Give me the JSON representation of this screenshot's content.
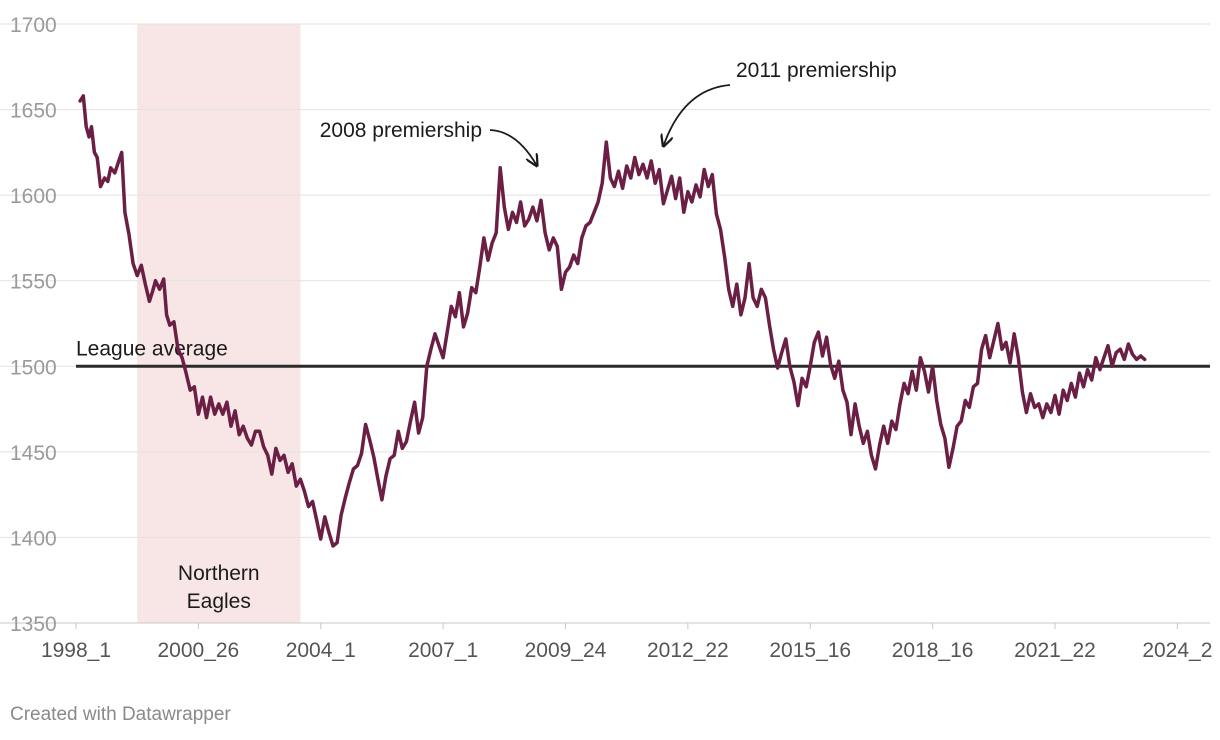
{
  "chart_data": {
    "type": "line",
    "title": "",
    "xlabel": "",
    "ylabel": "",
    "ylim": [
      1350,
      1700
    ],
    "y_ticks": [
      1350,
      1400,
      1450,
      1500,
      1550,
      1600,
      1650,
      1700
    ],
    "x_tick_labels": [
      "1998_1",
      "2000_26",
      "2004_1",
      "2007_1",
      "2009_24",
      "2012_22",
      "2015_16",
      "2018_16",
      "2021_22",
      "2024_2"
    ],
    "x_tick_positions": [
      1998.0,
      2001.0,
      2004.0,
      2007.0,
      2010.0,
      2013.0,
      2016.0,
      2019.0,
      2022.0,
      2025.0
    ],
    "xlim": [
      1998.0,
      2025.8
    ],
    "grid": true,
    "reference_line": {
      "value": 1500,
      "label": "League average"
    },
    "shaded_region": {
      "x_start": 1999.5,
      "x_end": 2003.5,
      "label_line1": "Northern",
      "label_line2": "Eagles",
      "color": "#f8e6e6"
    },
    "annotations": [
      {
        "text": "2008 premiership",
        "x": 2009.3,
        "y": 1616
      },
      {
        "text": "2011 premiership",
        "x": 2012.4,
        "y": 1631
      }
    ],
    "series": [
      {
        "color": "#6b1f45",
        "points": [
          [
            1998.1,
            1655
          ],
          [
            1998.18,
            1658
          ],
          [
            1998.25,
            1640
          ],
          [
            1998.32,
            1634
          ],
          [
            1998.38,
            1640
          ],
          [
            1998.45,
            1625
          ],
          [
            1998.52,
            1622
          ],
          [
            1998.6,
            1605
          ],
          [
            1998.7,
            1610
          ],
          [
            1998.78,
            1608
          ],
          [
            1998.85,
            1616
          ],
          [
            1998.95,
            1613
          ],
          [
            1999.05,
            1620
          ],
          [
            1999.12,
            1625
          ],
          [
            1999.2,
            1590
          ],
          [
            1999.3,
            1577
          ],
          [
            1999.4,
            1560
          ],
          [
            1999.5,
            1553
          ],
          [
            1999.6,
            1559
          ],
          [
            1999.7,
            1548
          ],
          [
            1999.8,
            1538
          ],
          [
            1999.88,
            1544
          ],
          [
            1999.95,
            1550
          ],
          [
            2000.05,
            1545
          ],
          [
            2000.15,
            1551
          ],
          [
            2000.22,
            1530
          ],
          [
            2000.3,
            1524
          ],
          [
            2000.4,
            1526
          ],
          [
            2000.5,
            1510
          ],
          [
            2000.6,
            1505
          ],
          [
            2000.7,
            1496
          ],
          [
            2000.8,
            1486
          ],
          [
            2000.9,
            1488
          ],
          [
            2001.0,
            1472
          ],
          [
            2001.1,
            1482
          ],
          [
            2001.2,
            1470
          ],
          [
            2001.3,
            1482
          ],
          [
            2001.4,
            1472
          ],
          [
            2001.5,
            1478
          ],
          [
            2001.6,
            1472
          ],
          [
            2001.7,
            1479
          ],
          [
            2001.8,
            1465
          ],
          [
            2001.9,
            1474
          ],
          [
            2002.0,
            1460
          ],
          [
            2002.1,
            1465
          ],
          [
            2002.2,
            1458
          ],
          [
            2002.3,
            1454
          ],
          [
            2002.4,
            1462
          ],
          [
            2002.5,
            1462
          ],
          [
            2002.6,
            1453
          ],
          [
            2002.7,
            1448
          ],
          [
            2002.8,
            1437
          ],
          [
            2002.9,
            1452
          ],
          [
            2003.0,
            1445
          ],
          [
            2003.1,
            1448
          ],
          [
            2003.2,
            1438
          ],
          [
            2003.3,
            1443
          ],
          [
            2003.4,
            1430
          ],
          [
            2003.5,
            1434
          ],
          [
            2003.6,
            1427
          ],
          [
            2003.7,
            1418
          ],
          [
            2003.8,
            1421
          ],
          [
            2003.9,
            1410
          ],
          [
            2004.0,
            1399
          ],
          [
            2004.1,
            1412
          ],
          [
            2004.2,
            1403
          ],
          [
            2004.3,
            1395
          ],
          [
            2004.4,
            1397
          ],
          [
            2004.5,
            1413
          ],
          [
            2004.6,
            1423
          ],
          [
            2004.7,
            1432
          ],
          [
            2004.8,
            1440
          ],
          [
            2004.9,
            1442
          ],
          [
            2005.0,
            1449
          ],
          [
            2005.1,
            1466
          ],
          [
            2005.2,
            1457
          ],
          [
            2005.3,
            1447
          ],
          [
            2005.4,
            1434
          ],
          [
            2005.5,
            1422
          ],
          [
            2005.6,
            1436
          ],
          [
            2005.7,
            1446
          ],
          [
            2005.8,
            1448
          ],
          [
            2005.9,
            1462
          ],
          [
            2006.0,
            1452
          ],
          [
            2006.1,
            1456
          ],
          [
            2006.2,
            1468
          ],
          [
            2006.3,
            1479
          ],
          [
            2006.4,
            1461
          ],
          [
            2006.5,
            1470
          ],
          [
            2006.6,
            1500
          ],
          [
            2006.7,
            1510
          ],
          [
            2006.8,
            1519
          ],
          [
            2006.9,
            1512
          ],
          [
            2007.0,
            1505
          ],
          [
            2007.1,
            1520
          ],
          [
            2007.2,
            1535
          ],
          [
            2007.3,
            1529
          ],
          [
            2007.4,
            1543
          ],
          [
            2007.5,
            1523
          ],
          [
            2007.6,
            1531
          ],
          [
            2007.7,
            1546
          ],
          [
            2007.8,
            1543
          ],
          [
            2007.9,
            1558
          ],
          [
            2008.0,
            1575
          ],
          [
            2008.1,
            1562
          ],
          [
            2008.2,
            1572
          ],
          [
            2008.3,
            1578
          ],
          [
            2008.4,
            1616
          ],
          [
            2008.5,
            1593
          ],
          [
            2008.6,
            1580
          ],
          [
            2008.7,
            1590
          ],
          [
            2008.8,
            1584
          ],
          [
            2008.9,
            1596
          ],
          [
            2009.0,
            1582
          ],
          [
            2009.1,
            1586
          ],
          [
            2009.2,
            1593
          ],
          [
            2009.3,
            1585
          ],
          [
            2009.4,
            1597
          ],
          [
            2009.5,
            1578
          ],
          [
            2009.6,
            1568
          ],
          [
            2009.7,
            1575
          ],
          [
            2009.8,
            1570
          ],
          [
            2009.9,
            1545
          ],
          [
            2010.0,
            1555
          ],
          [
            2010.1,
            1558
          ],
          [
            2010.2,
            1565
          ],
          [
            2010.3,
            1560
          ],
          [
            2010.4,
            1575
          ],
          [
            2010.5,
            1582
          ],
          [
            2010.6,
            1584
          ],
          [
            2010.7,
            1590
          ],
          [
            2010.8,
            1596
          ],
          [
            2010.9,
            1607
          ],
          [
            2011.0,
            1631
          ],
          [
            2011.1,
            1610
          ],
          [
            2011.2,
            1605
          ],
          [
            2011.3,
            1614
          ],
          [
            2011.4,
            1604
          ],
          [
            2011.5,
            1617
          ],
          [
            2011.6,
            1610
          ],
          [
            2011.7,
            1622
          ],
          [
            2011.8,
            1612
          ],
          [
            2011.9,
            1618
          ],
          [
            2012.0,
            1610
          ],
          [
            2012.1,
            1620
          ],
          [
            2012.2,
            1607
          ],
          [
            2012.3,
            1615
          ],
          [
            2012.4,
            1595
          ],
          [
            2012.5,
            1603
          ],
          [
            2012.6,
            1611
          ],
          [
            2012.7,
            1598
          ],
          [
            2012.8,
            1610
          ],
          [
            2012.9,
            1590
          ],
          [
            2013.0,
            1602
          ],
          [
            2013.1,
            1596
          ],
          [
            2013.2,
            1606
          ],
          [
            2013.3,
            1599
          ],
          [
            2013.4,
            1615
          ],
          [
            2013.5,
            1605
          ],
          [
            2013.6,
            1612
          ],
          [
            2013.7,
            1589
          ],
          [
            2013.8,
            1580
          ],
          [
            2013.9,
            1564
          ],
          [
            2014.0,
            1545
          ],
          [
            2014.1,
            1535
          ],
          [
            2014.2,
            1548
          ],
          [
            2014.3,
            1530
          ],
          [
            2014.4,
            1540
          ],
          [
            2014.5,
            1560
          ],
          [
            2014.6,
            1540
          ],
          [
            2014.7,
            1535
          ],
          [
            2014.8,
            1545
          ],
          [
            2014.9,
            1540
          ],
          [
            2015.0,
            1524
          ],
          [
            2015.1,
            1510
          ],
          [
            2015.2,
            1499
          ],
          [
            2015.3,
            1508
          ],
          [
            2015.4,
            1516
          ],
          [
            2015.5,
            1500
          ],
          [
            2015.6,
            1491
          ],
          [
            2015.7,
            1477
          ],
          [
            2015.8,
            1493
          ],
          [
            2015.9,
            1488
          ],
          [
            2016.0,
            1500
          ],
          [
            2016.1,
            1514
          ],
          [
            2016.2,
            1520
          ],
          [
            2016.3,
            1506
          ],
          [
            2016.4,
            1517
          ],
          [
            2016.5,
            1501
          ],
          [
            2016.6,
            1493
          ],
          [
            2016.7,
            1503
          ],
          [
            2016.8,
            1486
          ],
          [
            2016.9,
            1479
          ],
          [
            2017.0,
            1460
          ],
          [
            2017.1,
            1478
          ],
          [
            2017.2,
            1465
          ],
          [
            2017.3,
            1455
          ],
          [
            2017.4,
            1462
          ],
          [
            2017.5,
            1448
          ],
          [
            2017.6,
            1440
          ],
          [
            2017.7,
            1454
          ],
          [
            2017.8,
            1465
          ],
          [
            2017.9,
            1455
          ],
          [
            2018.0,
            1468
          ],
          [
            2018.1,
            1463
          ],
          [
            2018.2,
            1478
          ],
          [
            2018.3,
            1490
          ],
          [
            2018.4,
            1484
          ],
          [
            2018.5,
            1497
          ],
          [
            2018.6,
            1486
          ],
          [
            2018.7,
            1505
          ],
          [
            2018.8,
            1497
          ],
          [
            2018.9,
            1485
          ],
          [
            2019.0,
            1500
          ],
          [
            2019.1,
            1480
          ],
          [
            2019.2,
            1466
          ],
          [
            2019.3,
            1458
          ],
          [
            2019.4,
            1441
          ],
          [
            2019.5,
            1452
          ],
          [
            2019.6,
            1465
          ],
          [
            2019.7,
            1468
          ],
          [
            2019.8,
            1480
          ],
          [
            2019.9,
            1476
          ],
          [
            2020.0,
            1488
          ],
          [
            2020.1,
            1490
          ],
          [
            2020.2,
            1510
          ],
          [
            2020.3,
            1518
          ],
          [
            2020.4,
            1505
          ],
          [
            2020.5,
            1515
          ],
          [
            2020.6,
            1525
          ],
          [
            2020.7,
            1510
          ],
          [
            2020.8,
            1514
          ],
          [
            2020.9,
            1502
          ],
          [
            2021.0,
            1519
          ],
          [
            2021.1,
            1505
          ],
          [
            2021.2,
            1485
          ],
          [
            2021.3,
            1473
          ],
          [
            2021.4,
            1484
          ],
          [
            2021.5,
            1476
          ],
          [
            2021.6,
            1478
          ],
          [
            2021.7,
            1470
          ],
          [
            2021.8,
            1478
          ],
          [
            2021.9,
            1473
          ],
          [
            2022.0,
            1483
          ],
          [
            2022.1,
            1472
          ],
          [
            2022.2,
            1486
          ],
          [
            2022.3,
            1480
          ],
          [
            2022.4,
            1490
          ],
          [
            2022.5,
            1482
          ],
          [
            2022.6,
            1496
          ],
          [
            2022.7,
            1488
          ],
          [
            2022.8,
            1498
          ],
          [
            2022.9,
            1492
          ],
          [
            2023.0,
            1505
          ],
          [
            2023.1,
            1498
          ],
          [
            2023.2,
            1505
          ],
          [
            2023.3,
            1512
          ],
          [
            2023.4,
            1500
          ],
          [
            2023.5,
            1508
          ],
          [
            2023.6,
            1510
          ],
          [
            2023.7,
            1504
          ],
          [
            2023.8,
            1513
          ],
          [
            2023.9,
            1507
          ],
          [
            2024.0,
            1504
          ],
          [
            2024.1,
            1506
          ],
          [
            2024.2,
            1504
          ]
        ]
      }
    ]
  },
  "footer": {
    "credit": "Created with Datawrapper"
  }
}
